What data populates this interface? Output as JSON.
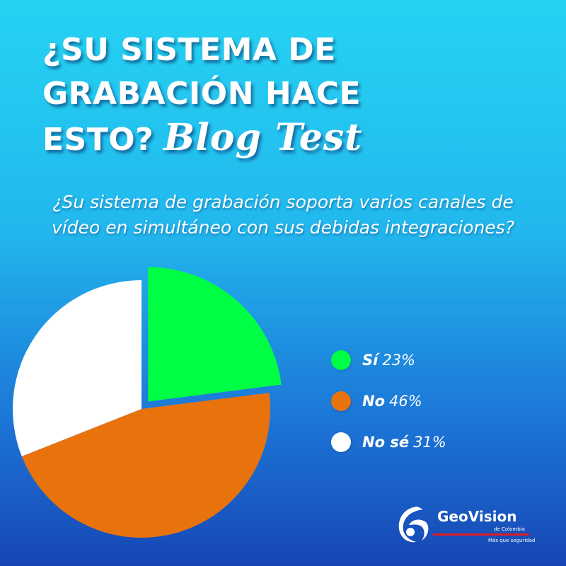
{
  "headline": {
    "line1": "¿SU SISTEMA DE",
    "line2": "GRABACIÓN HACE",
    "line3": "ESTO?",
    "script": "Blog Test"
  },
  "question": "¿Su sistema de grabación soporta varios canales de vídeo en simultáneo con sus debidas integraciones?",
  "chart_data": {
    "type": "pie",
    "categories": [
      "Sí",
      "No",
      "No sé"
    ],
    "values": [
      23,
      46,
      31
    ],
    "labels": [
      "23%",
      "46%",
      "31%"
    ],
    "colors": [
      "#00ff44",
      "#e8730c",
      "#ffffff"
    ],
    "legend": "right",
    "exploded": "Sí"
  },
  "logo": {
    "name": "GeoVision",
    "sub": "de Colombia",
    "tagline": "Más que seguridad",
    "accent": "#e01b23"
  }
}
